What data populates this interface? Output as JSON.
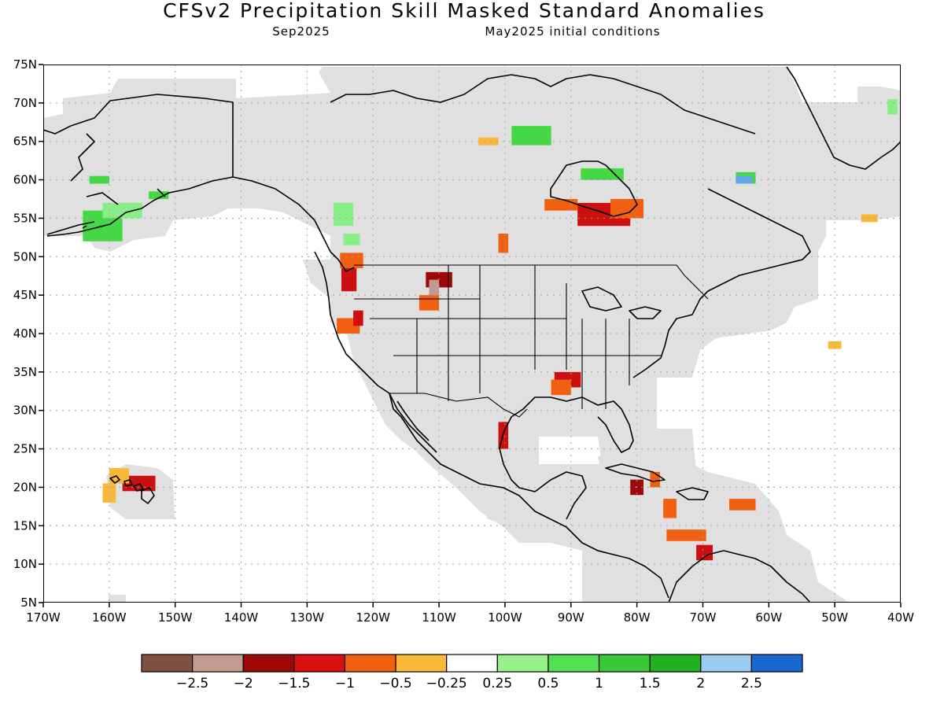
{
  "title": "CFSv2 Precipitation Skill Masked Standard Anomalies",
  "subtitle_left": "Sep2025",
  "subtitle_right": "May2025 initial conditions",
  "map": {
    "lon_range": [
      -170,
      -40
    ],
    "lat_range": [
      5,
      75
    ],
    "lat_ticks": [
      {
        "value": 75,
        "label": "75N"
      },
      {
        "value": 70,
        "label": "70N"
      },
      {
        "value": 65,
        "label": "65N"
      },
      {
        "value": 60,
        "label": "60N"
      },
      {
        "value": 55,
        "label": "55N"
      },
      {
        "value": 50,
        "label": "50N"
      },
      {
        "value": 45,
        "label": "45N"
      },
      {
        "value": 40,
        "label": "40N"
      },
      {
        "value": 35,
        "label": "35N"
      },
      {
        "value": 30,
        "label": "30N"
      },
      {
        "value": 25,
        "label": "25N"
      },
      {
        "value": 20,
        "label": "20N"
      },
      {
        "value": 15,
        "label": "15N"
      },
      {
        "value": 10,
        "label": "10N"
      },
      {
        "value": 5,
        "label": "5N"
      }
    ],
    "lon_ticks": [
      {
        "value": -170,
        "label": "170W"
      },
      {
        "value": -160,
        "label": "160W"
      },
      {
        "value": -150,
        "label": "150W"
      },
      {
        "value": -140,
        "label": "140W"
      },
      {
        "value": -130,
        "label": "130W"
      },
      {
        "value": -120,
        "label": "120W"
      },
      {
        "value": -110,
        "label": "110W"
      },
      {
        "value": -100,
        "label": "100W"
      },
      {
        "value": -90,
        "label": "90W"
      },
      {
        "value": -80,
        "label": "80W"
      },
      {
        "value": -70,
        "label": "70W"
      },
      {
        "value": -60,
        "label": "60W"
      },
      {
        "value": -50,
        "label": "50W"
      },
      {
        "value": -40,
        "label": "40W"
      }
    ],
    "colors": {
      "mask_gray": "#e0e0e0",
      "land_outline": "#000000",
      "grid": "#a0a0a0"
    },
    "anomaly_regions": [
      {
        "lon": [
          -124.8,
          -122.5
        ],
        "lat": [
          45.5,
          50
        ],
        "color": "#cc1010"
      },
      {
        "lon": [
          -125,
          -121.5
        ],
        "lat": [
          48.5,
          50.5
        ],
        "color": "#f06010"
      },
      {
        "lon": [
          -125.5,
          -122
        ],
        "lat": [
          40,
          42
        ],
        "color": "#f06010"
      },
      {
        "lon": [
          -123,
          -121.5
        ],
        "lat": [
          41,
          43
        ],
        "color": "#cc1010"
      },
      {
        "lon": [
          -112,
          -108
        ],
        "lat": [
          46,
          48
        ],
        "color": "#a00808"
      },
      {
        "lon": [
          -111.5,
          -110
        ],
        "lat": [
          45,
          47
        ],
        "color": "#c49a90"
      },
      {
        "lon": [
          -113,
          -110
        ],
        "lat": [
          43,
          45
        ],
        "color": "#f06010"
      },
      {
        "lon": [
          -92.5,
          -88.5
        ],
        "lat": [
          33,
          35
        ],
        "color": "#cc1010"
      },
      {
        "lon": [
          -93,
          -90
        ],
        "lat": [
          32,
          34
        ],
        "color": "#f06010"
      },
      {
        "lon": [
          -101,
          -99.5
        ],
        "lat": [
          25,
          28.5
        ],
        "color": "#cc1010"
      },
      {
        "lon": [
          -89,
          -81
        ],
        "lat": [
          54,
          57
        ],
        "color": "#cc1010"
      },
      {
        "lon": [
          -94,
          -89
        ],
        "lat": [
          56,
          57.5
        ],
        "color": "#f06010"
      },
      {
        "lon": [
          -84,
          -79
        ],
        "lat": [
          55,
          57.5
        ],
        "color": "#f06010"
      },
      {
        "lon": [
          -101,
          -99.5
        ],
        "lat": [
          50.5,
          53
        ],
        "color": "#f06010"
      },
      {
        "lon": [
          -88.5,
          -82
        ],
        "lat": [
          60,
          61.5
        ],
        "color": "#44d844"
      },
      {
        "lon": [
          -99,
          -93
        ],
        "lat": [
          64.5,
          67
        ],
        "color": "#44d844"
      },
      {
        "lon": [
          -104,
          -101
        ],
        "lat": [
          64.5,
          65.5
        ],
        "color": "#f8b838"
      },
      {
        "lon": [
          -81,
          -79
        ],
        "lat": [
          19,
          21
        ],
        "color": "#a00808"
      },
      {
        "lon": [
          -78,
          -76.5
        ],
        "lat": [
          20,
          22
        ],
        "color": "#f06010"
      },
      {
        "lon": [
          -76,
          -74
        ],
        "lat": [
          16,
          18.5
        ],
        "color": "#f06010"
      },
      {
        "lon": [
          -75.5,
          -69.5
        ],
        "lat": [
          13,
          14.5
        ],
        "color": "#f06010"
      },
      {
        "lon": [
          -71,
          -68.5
        ],
        "lat": [
          10.5,
          12.5
        ],
        "color": "#cc1010"
      },
      {
        "lon": [
          -66,
          -62
        ],
        "lat": [
          17,
          18.5
        ],
        "color": "#f06010"
      },
      {
        "lon": [
          -158,
          -153
        ],
        "lat": [
          19.5,
          21.5
        ],
        "color": "#cc1010"
      },
      {
        "lon": [
          -160,
          -157
        ],
        "lat": [
          20.5,
          22.5
        ],
        "color": "#f8b838"
      },
      {
        "lon": [
          -161,
          -159
        ],
        "lat": [
          18,
          20.5
        ],
        "color": "#f8b838"
      },
      {
        "lon": [
          -164,
          -158
        ],
        "lat": [
          52,
          56
        ],
        "color": "#44d844"
      },
      {
        "lon": [
          -161,
          -155
        ],
        "lat": [
          55,
          57
        ],
        "color": "#88ee88"
      },
      {
        "lon": [
          -163,
          -160
        ],
        "lat": [
          59.5,
          60.5
        ],
        "color": "#44d844"
      },
      {
        "lon": [
          -154,
          -151
        ],
        "lat": [
          57.5,
          58.5
        ],
        "color": "#44d844"
      },
      {
        "lon": [
          -126,
          -123
        ],
        "lat": [
          54,
          57
        ],
        "color": "#88ee88"
      },
      {
        "lon": [
          -124.5,
          -122
        ],
        "lat": [
          51.5,
          53
        ],
        "color": "#88ee88"
      },
      {
        "lon": [
          -65,
          -62
        ],
        "lat": [
          59.5,
          61
        ],
        "color": "#44d844"
      },
      {
        "lon": [
          -65,
          -62.5
        ],
        "lat": [
          59.5,
          60.5
        ],
        "color": "#60a8e8"
      },
      {
        "lon": [
          -46,
          -43.5
        ],
        "lat": [
          54.5,
          55.5
        ],
        "color": "#f8b838"
      },
      {
        "lon": [
          -42,
          -40.5
        ],
        "lat": [
          68.5,
          70.5
        ],
        "color": "#88ee88"
      },
      {
        "lon": [
          -51,
          -49
        ],
        "lat": [
          38,
          39
        ],
        "color": "#f8b838"
      }
    ]
  },
  "colorbar": {
    "colors": [
      "#805040",
      "#c49a90",
      "#a00808",
      "#d81010",
      "#f06010",
      "#f8b838",
      "#ffffff",
      "#98f088",
      "#50e050",
      "#38c838",
      "#20b020",
      "#98ccf0",
      "#1868d0"
    ],
    "labels": [
      "−2.5",
      "−2",
      "−1.5",
      "−1",
      "−0.5",
      "−0.25",
      "0.25",
      "0.5",
      "1",
      "1.5",
      "2",
      "2.5"
    ]
  }
}
